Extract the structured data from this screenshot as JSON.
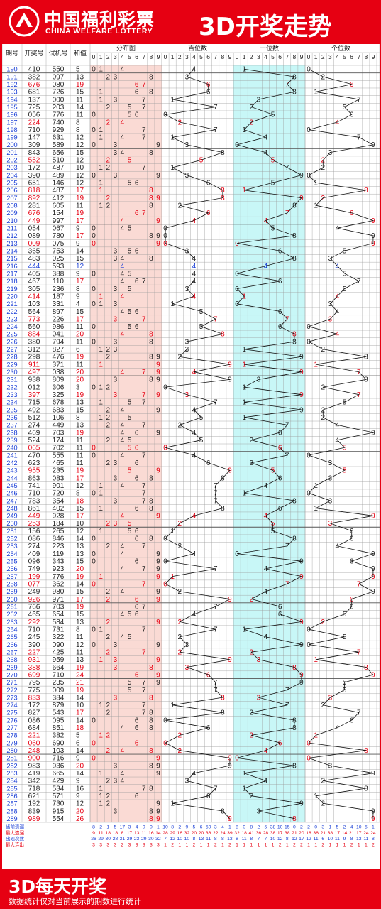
{
  "header": {
    "logo_cn": "中国福利彩票",
    "logo_en": "CHINA WELFARE LOTTERY",
    "title": "3D开奖走势"
  },
  "footer": {
    "title": "3D每天开奖",
    "subtitle": "数据统计仅对当前展示的期数进行统计"
  },
  "colors": {
    "brand_red": "#e60012",
    "text_red": "#e60012",
    "text_blue": "#1a3fd6",
    "dist_bg": "#fadad4",
    "tens_bg": "#c8f7f7"
  },
  "table": {
    "headers": [
      "期号",
      "开奖号",
      "试机号",
      "和值",
      "分布图",
      "百位数",
      "十位数",
      "个位数"
    ],
    "digits": [
      "0",
      "1",
      "2",
      "3",
      "4",
      "5",
      "6",
      "7",
      "8",
      "9"
    ],
    "stat_labels": [
      "当前遗漏",
      "最大遗漏",
      "出现次数",
      "最大连出"
    ],
    "stats": [
      {
        "dist": [
          8,
          2,
          1,
          5,
          17,
          3,
          4,
          0,
          0,
          1
        ],
        "hun": [
          10,
          8,
          2,
          9,
          5,
          6,
          50,
          3,
          4,
          1
        ],
        "ten": [
          8,
          0,
          8,
          2,
          5,
          38,
          10,
          15,
          0,
          2
        ],
        "one": [
          2,
          0,
          3,
          1,
          5,
          2,
          4,
          10,
          5,
          1
        ]
      },
      {
        "dist": [
          9,
          11,
          18,
          18,
          8,
          17,
          13,
          11,
          16,
          14
        ],
        "hun": [
          28,
          29,
          16,
          32,
          20,
          20,
          36,
          22,
          24,
          39
        ],
        "ten": [
          32,
          18,
          41,
          36,
          28,
          38,
          17,
          38,
          21,
          20
        ],
        "one": [
          18,
          36,
          21,
          38,
          17,
          14,
          21,
          17,
          24,
          24
        ]
      },
      {
        "dist": [
          26,
          29,
          30,
          28,
          31,
          29,
          23,
          29,
          30,
          32
        ],
        "hun": [
          7,
          12,
          10,
          10,
          8,
          13,
          11,
          8,
          8,
          13
        ],
        "ten": [
          8,
          11,
          8,
          7,
          7,
          10,
          12,
          8,
          12,
          17
        ],
        "one": [
          12,
          11,
          6,
          10,
          11,
          9,
          8,
          13,
          11,
          8
        ]
      },
      {
        "dist": [
          3,
          3,
          3,
          3,
          2,
          3,
          3,
          3,
          3,
          3
        ],
        "hun": [
          1,
          2,
          1,
          1,
          2,
          1,
          1,
          2,
          1,
          2
        ],
        "ten": [
          1,
          1,
          1,
          1,
          1,
          1,
          2,
          1,
          2,
          2
        ],
        "one": [
          1,
          1,
          2,
          1,
          1,
          1,
          2,
          1,
          1,
          2
        ]
      }
    ]
  },
  "chart_data": {
    "type": "table",
    "title": "3D开奖走势",
    "columns": [
      "期号",
      "开奖号",
      "试机号",
      "和值"
    ],
    "rows": [
      [
        "190",
        "410",
        "550",
        "5"
      ],
      [
        "191",
        "382",
        "097",
        "13"
      ],
      [
        "192",
        "676",
        "080",
        "19"
      ],
      [
        "193",
        "681",
        "726",
        "15"
      ],
      [
        "194",
        "137",
        "000",
        "11"
      ],
      [
        "195",
        "725",
        "203",
        "14"
      ],
      [
        "196",
        "056",
        "776",
        "11"
      ],
      [
        "197",
        "224",
        "740",
        "8"
      ],
      [
        "198",
        "710",
        "929",
        "8"
      ],
      [
        "199",
        "147",
        "631",
        "12"
      ],
      [
        "200",
        "309",
        "589",
        "12"
      ],
      [
        "201",
        "843",
        "656",
        "15"
      ],
      [
        "202",
        "552",
        "510",
        "12"
      ],
      [
        "203",
        "172",
        "487",
        "10"
      ],
      [
        "204",
        "390",
        "489",
        "12"
      ],
      [
        "205",
        "651",
        "146",
        "12"
      ],
      [
        "206",
        "818",
        "487",
        "17"
      ],
      [
        "207",
        "892",
        "412",
        "19"
      ],
      [
        "208",
        "281",
        "605",
        "11"
      ],
      [
        "209",
        "676",
        "154",
        "19"
      ],
      [
        "210",
        "449",
        "997",
        "17"
      ],
      [
        "211",
        "054",
        "067",
        "9"
      ],
      [
        "212",
        "089",
        "780",
        "17"
      ],
      [
        "213",
        "009",
        "075",
        "9"
      ],
      [
        "214",
        "365",
        "753",
        "14"
      ],
      [
        "215",
        "483",
        "025",
        "15"
      ],
      [
        "216",
        "444",
        "593",
        "12"
      ],
      [
        "217",
        "405",
        "388",
        "9"
      ],
      [
        "218",
        "467",
        "110",
        "17"
      ],
      [
        "219",
        "305",
        "236",
        "8"
      ],
      [
        "220",
        "414",
        "187",
        "9"
      ],
      [
        "221",
        "103",
        "331",
        "4"
      ],
      [
        "222",
        "564",
        "897",
        "15"
      ],
      [
        "223",
        "773",
        "226",
        "17"
      ],
      [
        "224",
        "560",
        "986",
        "11"
      ],
      [
        "225",
        "884",
        "041",
        "20"
      ],
      [
        "226",
        "380",
        "794",
        "11"
      ],
      [
        "227",
        "312",
        "827",
        "6"
      ],
      [
        "228",
        "298",
        "476",
        "19"
      ],
      [
        "229",
        "911",
        "371",
        "11"
      ],
      [
        "230",
        "497",
        "038",
        "20"
      ],
      [
        "231",
        "938",
        "809",
        "20"
      ],
      [
        "232",
        "012",
        "306",
        "3"
      ],
      [
        "233",
        "397",
        "325",
        "19"
      ],
      [
        "234",
        "715",
        "678",
        "13"
      ],
      [
        "235",
        "492",
        "683",
        "15"
      ],
      [
        "236",
        "512",
        "106",
        "8"
      ],
      [
        "237",
        "274",
        "449",
        "13"
      ],
      [
        "238",
        "469",
        "703",
        "19"
      ],
      [
        "239",
        "524",
        "174",
        "11"
      ],
      [
        "240",
        "065",
        "702",
        "11"
      ],
      [
        "241",
        "470",
        "555",
        "11"
      ],
      [
        "242",
        "623",
        "465",
        "11"
      ],
      [
        "243",
        "955",
        "235",
        "19"
      ],
      [
        "244",
        "863",
        "083",
        "17"
      ],
      [
        "245",
        "741",
        "901",
        "12"
      ],
      [
        "246",
        "710",
        "720",
        "8"
      ],
      [
        "247",
        "783",
        "354",
        "18"
      ],
      [
        "248",
        "861",
        "402",
        "15"
      ],
      [
        "249",
        "449",
        "928",
        "17"
      ],
      [
        "250",
        "253",
        "184",
        "10"
      ],
      [
        "251",
        "156",
        "265",
        "12"
      ],
      [
        "252",
        "086",
        "846",
        "14"
      ],
      [
        "253",
        "274",
        "223",
        "13"
      ],
      [
        "254",
        "409",
        "119",
        "13"
      ],
      [
        "255",
        "096",
        "343",
        "15"
      ],
      [
        "256",
        "749",
        "923",
        "20"
      ],
      [
        "257",
        "199",
        "776",
        "19"
      ],
      [
        "258",
        "077",
        "362",
        "14"
      ],
      [
        "259",
        "249",
        "980",
        "15"
      ],
      [
        "260",
        "926",
        "971",
        "17"
      ],
      [
        "261",
        "766",
        "703",
        "19"
      ],
      [
        "262",
        "465",
        "654",
        "15"
      ],
      [
        "263",
        "292",
        "584",
        "13"
      ],
      [
        "264",
        "710",
        "731",
        "8"
      ],
      [
        "265",
        "245",
        "322",
        "11"
      ],
      [
        "266",
        "390",
        "090",
        "12"
      ],
      [
        "267",
        "227",
        "425",
        "11"
      ],
      [
        "268",
        "931",
        "959",
        "13"
      ],
      [
        "269",
        "388",
        "664",
        "19"
      ],
      [
        "270",
        "699",
        "710",
        "24"
      ],
      [
        "271",
        "795",
        "235",
        "21"
      ],
      [
        "272",
        "775",
        "009",
        "19"
      ],
      [
        "273",
        "833",
        "384",
        "14"
      ],
      [
        "274",
        "172",
        "879",
        "10"
      ],
      [
        "275",
        "827",
        "543",
        "17"
      ],
      [
        "276",
        "086",
        "095",
        "14"
      ],
      [
        "277",
        "684",
        "851",
        "18"
      ],
      [
        "278",
        "221",
        "382",
        "5"
      ],
      [
        "279",
        "060",
        "690",
        "6"
      ],
      [
        "280",
        "248",
        "103",
        "14"
      ],
      [
        "281",
        "900",
        "716",
        "9"
      ],
      [
        "282",
        "983",
        "936",
        "20"
      ],
      [
        "283",
        "419",
        "665",
        "14"
      ],
      [
        "284",
        "342",
        "429",
        "9"
      ],
      [
        "285",
        "718",
        "534",
        "16"
      ],
      [
        "286",
        "621",
        "571",
        "9"
      ],
      [
        "287",
        "192",
        "730",
        "12"
      ],
      [
        "288",
        "839",
        "915",
        "20"
      ],
      [
        "289",
        "989",
        "554",
        "26"
      ]
    ]
  }
}
